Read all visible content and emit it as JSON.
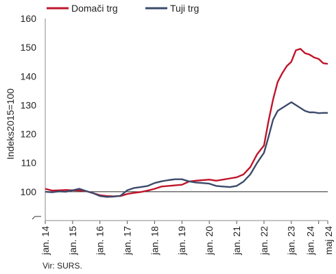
{
  "chart_data": {
    "type": "line",
    "title": "",
    "xlabel": "",
    "ylabel": "Indeks2015=100",
    "ylim": [
      90,
      160
    ],
    "yticks": [
      100,
      110,
      120,
      130,
      140,
      150,
      160
    ],
    "ytick_labels": [
      "100",
      "110",
      "120",
      "130",
      "140",
      "150",
      "160"
    ],
    "reference_line": 100,
    "x_tick_labels": [
      "jan. 14",
      "jan. 15",
      "jan. 16",
      "jan. 17",
      "jan. 18",
      "jan. 19",
      "jan. 20",
      "jan. 21",
      "jan. 22",
      "jan. 23",
      "jan. 24",
      "maj 24"
    ],
    "legend_position": "top-left",
    "x": [
      "2014-01",
      "2014-04",
      "2014-07",
      "2014-10",
      "2015-01",
      "2015-04",
      "2015-07",
      "2015-10",
      "2016-01",
      "2016-04",
      "2016-07",
      "2016-10",
      "2017-01",
      "2017-04",
      "2017-07",
      "2017-10",
      "2018-01",
      "2018-04",
      "2018-07",
      "2018-10",
      "2019-01",
      "2019-04",
      "2019-07",
      "2019-10",
      "2020-01",
      "2020-04",
      "2020-07",
      "2020-10",
      "2021-01",
      "2021-04",
      "2021-07",
      "2021-10",
      "2022-01",
      "2022-03",
      "2022-05",
      "2022-07",
      "2022-09",
      "2022-11",
      "2023-01",
      "2023-03",
      "2023-05",
      "2023-07",
      "2023-09",
      "2023-11",
      "2024-01",
      "2024-03",
      "2024-05"
    ],
    "series": [
      {
        "name": "Domači trg",
        "color": "#c0142a",
        "values": [
          101.0,
          100.4,
          100.5,
          100.6,
          100.5,
          100.4,
          100.2,
          99.5,
          98.8,
          98.5,
          98.4,
          98.5,
          99.2,
          99.6,
          99.9,
          100.4,
          101.0,
          101.8,
          102.0,
          102.2,
          102.4,
          103.5,
          103.8,
          104.0,
          104.2,
          103.8,
          104.2,
          104.6,
          105.0,
          106.0,
          108.5,
          113.0,
          116.0,
          124.5,
          132.0,
          138.0,
          141.0,
          143.5,
          145.0,
          149.0,
          149.5,
          148.0,
          147.5,
          146.5,
          146.0,
          144.5,
          144.3
        ]
      },
      {
        "name": "Tuji trg",
        "color": "#3b4a6b",
        "values": [
          100.0,
          99.8,
          100.1,
          100.0,
          100.5,
          101.0,
          100.2,
          99.5,
          98.5,
          98.2,
          98.3,
          98.6,
          100.5,
          101.3,
          101.6,
          102.0,
          103.0,
          103.6,
          104.0,
          104.3,
          104.3,
          103.6,
          103.2,
          103.0,
          102.8,
          102.0,
          101.8,
          101.6,
          102.0,
          103.5,
          106.0,
          110.0,
          113.5,
          119.0,
          125.0,
          128.0,
          129.0,
          130.0,
          131.0,
          130.0,
          129.0,
          128.0,
          127.5,
          127.5,
          127.2,
          127.3,
          127.3
        ]
      }
    ]
  },
  "source_note": "Vir: SURS."
}
